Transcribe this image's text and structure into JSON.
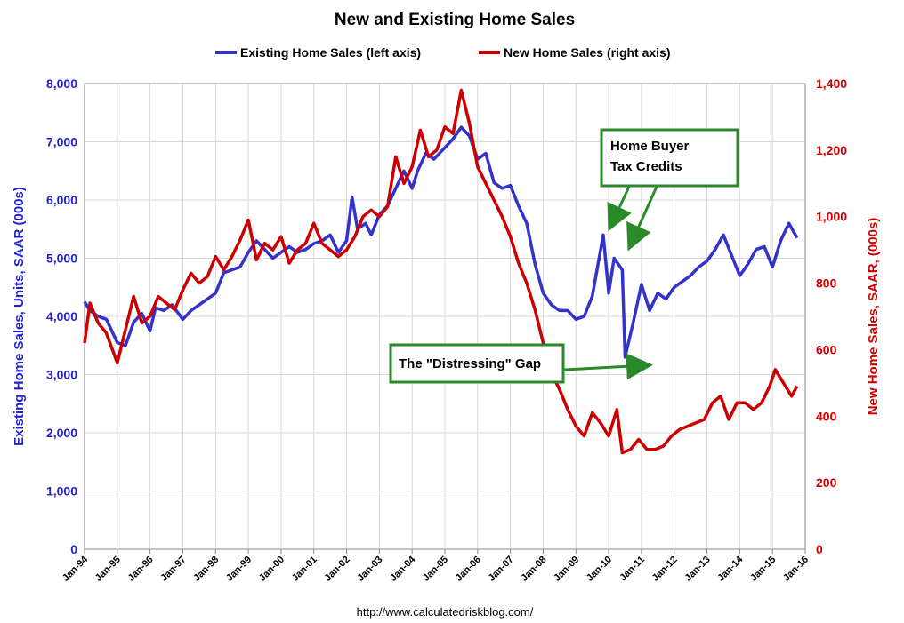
{
  "chart_data": {
    "type": "line",
    "title": "New and Existing Home Sales",
    "source": "http://www.calculatedriskblog.com/",
    "x_ticks": [
      "Jan-94",
      "Jan-95",
      "Jan-96",
      "Jan-97",
      "Jan-98",
      "Jan-99",
      "Jan-00",
      "Jan-01",
      "Jan-02",
      "Jan-03",
      "Jan-04",
      "Jan-05",
      "Jan-06",
      "Jan-07",
      "Jan-08",
      "Jan-09",
      "Jan-10",
      "Jan-11",
      "Jan-12",
      "Jan-13",
      "Jan-14",
      "Jan-15",
      "Jan-16"
    ],
    "left_axis": {
      "label": "Existing Home Sales, Units, SAAR (000s)",
      "ylim": [
        0,
        8000
      ],
      "ticks": [
        "0",
        "1,000",
        "2,000",
        "3,000",
        "4,000",
        "5,000",
        "6,000",
        "7,000",
        "8,000"
      ],
      "color": "#3333cc"
    },
    "right_axis": {
      "label": "New Home Sales, SAAR, (000s)",
      "ylim": [
        0,
        1400
      ],
      "ticks": [
        "0",
        "200",
        "400",
        "600",
        "800",
        "1,000",
        "1,200",
        "1,400"
      ],
      "color": "#cc0000"
    },
    "grid": true,
    "legend_position": "top-center",
    "series": [
      {
        "name": "Existing Home Sales (left axis)",
        "axis": "left",
        "color": "#3333cc",
        "points": [
          [
            "1994-01",
            4250
          ],
          [
            "1994-03",
            4100
          ],
          [
            "1994-06",
            4000
          ],
          [
            "1994-09",
            3950
          ],
          [
            "1995-01",
            3550
          ],
          [
            "1995-04",
            3500
          ],
          [
            "1995-07",
            3900
          ],
          [
            "1995-10",
            4050
          ],
          [
            "1996-01",
            3750
          ],
          [
            "1996-03",
            4150
          ],
          [
            "1996-06",
            4100
          ],
          [
            "1996-09",
            4200
          ],
          [
            "1997-01",
            3950
          ],
          [
            "1997-04",
            4100
          ],
          [
            "1997-07",
            4200
          ],
          [
            "1997-10",
            4300
          ],
          [
            "1998-01",
            4400
          ],
          [
            "1998-04",
            4750
          ],
          [
            "1998-07",
            4800
          ],
          [
            "1998-10",
            4850
          ],
          [
            "1999-01",
            5100
          ],
          [
            "1999-04",
            5300
          ],
          [
            "1999-07",
            5150
          ],
          [
            "1999-10",
            5000
          ],
          [
            "2000-01",
            5100
          ],
          [
            "2000-04",
            5200
          ],
          [
            "2000-07",
            5100
          ],
          [
            "2000-10",
            5150
          ],
          [
            "2001-01",
            5250
          ],
          [
            "2001-04",
            5300
          ],
          [
            "2001-07",
            5400
          ],
          [
            "2001-10",
            5100
          ],
          [
            "2002-01",
            5300
          ],
          [
            "2002-03",
            6050
          ],
          [
            "2002-05",
            5500
          ],
          [
            "2002-08",
            5600
          ],
          [
            "2002-10",
            5400
          ],
          [
            "2003-01",
            5750
          ],
          [
            "2003-04",
            5900
          ],
          [
            "2003-07",
            6200
          ],
          [
            "2003-10",
            6500
          ],
          [
            "2004-01",
            6200
          ],
          [
            "2004-03",
            6500
          ],
          [
            "2004-06",
            6800
          ],
          [
            "2004-09",
            6700
          ],
          [
            "2005-01",
            6900
          ],
          [
            "2005-04",
            7050
          ],
          [
            "2005-07",
            7250
          ],
          [
            "2005-10",
            7100
          ],
          [
            "2006-01",
            6700
          ],
          [
            "2006-04",
            6800
          ],
          [
            "2006-07",
            6300
          ],
          [
            "2006-10",
            6200
          ],
          [
            "2007-01",
            6250
          ],
          [
            "2007-04",
            5900
          ],
          [
            "2007-07",
            5600
          ],
          [
            "2007-10",
            4900
          ],
          [
            "2008-01",
            4400
          ],
          [
            "2008-04",
            4200
          ],
          [
            "2008-07",
            4100
          ],
          [
            "2008-10",
            4100
          ],
          [
            "2009-01",
            3950
          ],
          [
            "2009-04",
            4000
          ],
          [
            "2009-07",
            4350
          ],
          [
            "2009-11",
            5400
          ],
          [
            "2010-01",
            4400
          ],
          [
            "2010-03",
            5000
          ],
          [
            "2010-06",
            4800
          ],
          [
            "2010-07",
            3300
          ],
          [
            "2010-10",
            3900
          ],
          [
            "2011-01",
            4550
          ],
          [
            "2011-04",
            4100
          ],
          [
            "2011-07",
            4400
          ],
          [
            "2011-10",
            4300
          ],
          [
            "2012-01",
            4500
          ],
          [
            "2012-04",
            4600
          ],
          [
            "2012-07",
            4700
          ],
          [
            "2012-10",
            4850
          ],
          [
            "2013-01",
            4950
          ],
          [
            "2013-04",
            5150
          ],
          [
            "2013-07",
            5400
          ],
          [
            "2013-10",
            5050
          ],
          [
            "2014-01",
            4700
          ],
          [
            "2014-04",
            4900
          ],
          [
            "2014-07",
            5150
          ],
          [
            "2014-10",
            5200
          ],
          [
            "2015-01",
            4850
          ],
          [
            "2015-04",
            5300
          ],
          [
            "2015-07",
            5600
          ],
          [
            "2015-10",
            5350
          ]
        ]
      },
      {
        "name": "New Home Sales (right axis)",
        "axis": "right",
        "color": "#cc0000",
        "points": [
          [
            "1994-01",
            620
          ],
          [
            "1994-03",
            740
          ],
          [
            "1994-06",
            680
          ],
          [
            "1994-09",
            650
          ],
          [
            "1995-01",
            560
          ],
          [
            "1995-04",
            660
          ],
          [
            "1995-07",
            760
          ],
          [
            "1995-10",
            680
          ],
          [
            "1996-01",
            700
          ],
          [
            "1996-04",
            760
          ],
          [
            "1996-07",
            740
          ],
          [
            "1996-10",
            720
          ],
          [
            "1997-01",
            780
          ],
          [
            "1997-04",
            830
          ],
          [
            "1997-07",
            800
          ],
          [
            "1997-10",
            820
          ],
          [
            "1998-01",
            880
          ],
          [
            "1998-04",
            840
          ],
          [
            "1998-07",
            880
          ],
          [
            "1998-10",
            930
          ],
          [
            "1999-01",
            990
          ],
          [
            "1999-04",
            870
          ],
          [
            "1999-07",
            920
          ],
          [
            "1999-10",
            900
          ],
          [
            "2000-01",
            940
          ],
          [
            "2000-04",
            860
          ],
          [
            "2000-07",
            900
          ],
          [
            "2000-10",
            920
          ],
          [
            "2001-01",
            980
          ],
          [
            "2001-04",
            920
          ],
          [
            "2001-07",
            900
          ],
          [
            "2001-10",
            880
          ],
          [
            "2002-01",
            900
          ],
          [
            "2002-04",
            940
          ],
          [
            "2002-07",
            1000
          ],
          [
            "2002-10",
            1020
          ],
          [
            "2003-01",
            1000
          ],
          [
            "2003-04",
            1030
          ],
          [
            "2003-07",
            1180
          ],
          [
            "2003-10",
            1100
          ],
          [
            "2004-01",
            1150
          ],
          [
            "2004-04",
            1260
          ],
          [
            "2004-07",
            1180
          ],
          [
            "2004-10",
            1200
          ],
          [
            "2005-01",
            1270
          ],
          [
            "2005-04",
            1250
          ],
          [
            "2005-07",
            1380
          ],
          [
            "2005-10",
            1280
          ],
          [
            "2006-01",
            1150
          ],
          [
            "2006-04",
            1100
          ],
          [
            "2006-07",
            1050
          ],
          [
            "2006-10",
            1000
          ],
          [
            "2007-01",
            940
          ],
          [
            "2007-04",
            860
          ],
          [
            "2007-07",
            800
          ],
          [
            "2007-10",
            720
          ],
          [
            "2008-01",
            620
          ],
          [
            "2008-04",
            530
          ],
          [
            "2008-07",
            480
          ],
          [
            "2008-10",
            420
          ],
          [
            "2009-01",
            370
          ],
          [
            "2009-04",
            340
          ],
          [
            "2009-07",
            410
          ],
          [
            "2009-10",
            380
          ],
          [
            "2010-01",
            340
          ],
          [
            "2010-04",
            420
          ],
          [
            "2010-06",
            290
          ],
          [
            "2010-09",
            300
          ],
          [
            "2010-12",
            330
          ],
          [
            "2011-03",
            300
          ],
          [
            "2011-06",
            300
          ],
          [
            "2011-09",
            310
          ],
          [
            "2011-12",
            340
          ],
          [
            "2012-03",
            360
          ],
          [
            "2012-06",
            370
          ],
          [
            "2012-09",
            380
          ],
          [
            "2012-12",
            390
          ],
          [
            "2013-03",
            440
          ],
          [
            "2013-06",
            460
          ],
          [
            "2013-09",
            390
          ],
          [
            "2013-12",
            440
          ],
          [
            "2014-03",
            440
          ],
          [
            "2014-06",
            420
          ],
          [
            "2014-09",
            440
          ],
          [
            "2014-12",
            490
          ],
          [
            "2015-02",
            540
          ],
          [
            "2015-05",
            500
          ],
          [
            "2015-08",
            460
          ],
          [
            "2015-10",
            490
          ]
        ]
      }
    ],
    "annotations": [
      {
        "text_lines": [
          "Home Buyer",
          "Tax Credits"
        ]
      },
      {
        "text_lines": [
          "The \"Distressing\" Gap"
        ]
      }
    ]
  }
}
